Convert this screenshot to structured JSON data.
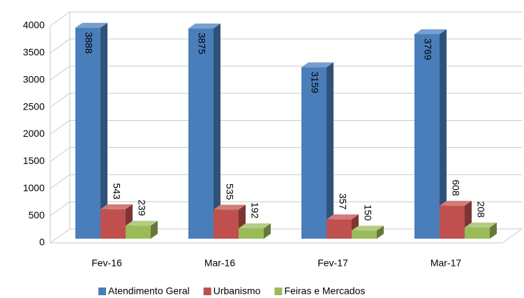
{
  "chart_data": {
    "type": "bar3d",
    "categories": [
      "Fev-16",
      "Mar-16",
      "Fev-17",
      "Mar-17"
    ],
    "series": [
      {
        "name": "Atendimento Geral",
        "color": "#4a7ebb",
        "values": [
          3888,
          3875,
          3159,
          3769
        ]
      },
      {
        "name": "Urbanismo",
        "color": "#c0504d",
        "values": [
          543,
          535,
          357,
          608
        ]
      },
      {
        "name": "Feiras e Mercados",
        "color": "#9bbb59",
        "values": [
          239,
          192,
          150,
          208
        ]
      }
    ],
    "ylim": [
      0,
      4000
    ],
    "yticks": [
      0,
      500,
      1000,
      1500,
      2000,
      2500,
      3000,
      3500,
      4000
    ],
    "grid": true
  }
}
